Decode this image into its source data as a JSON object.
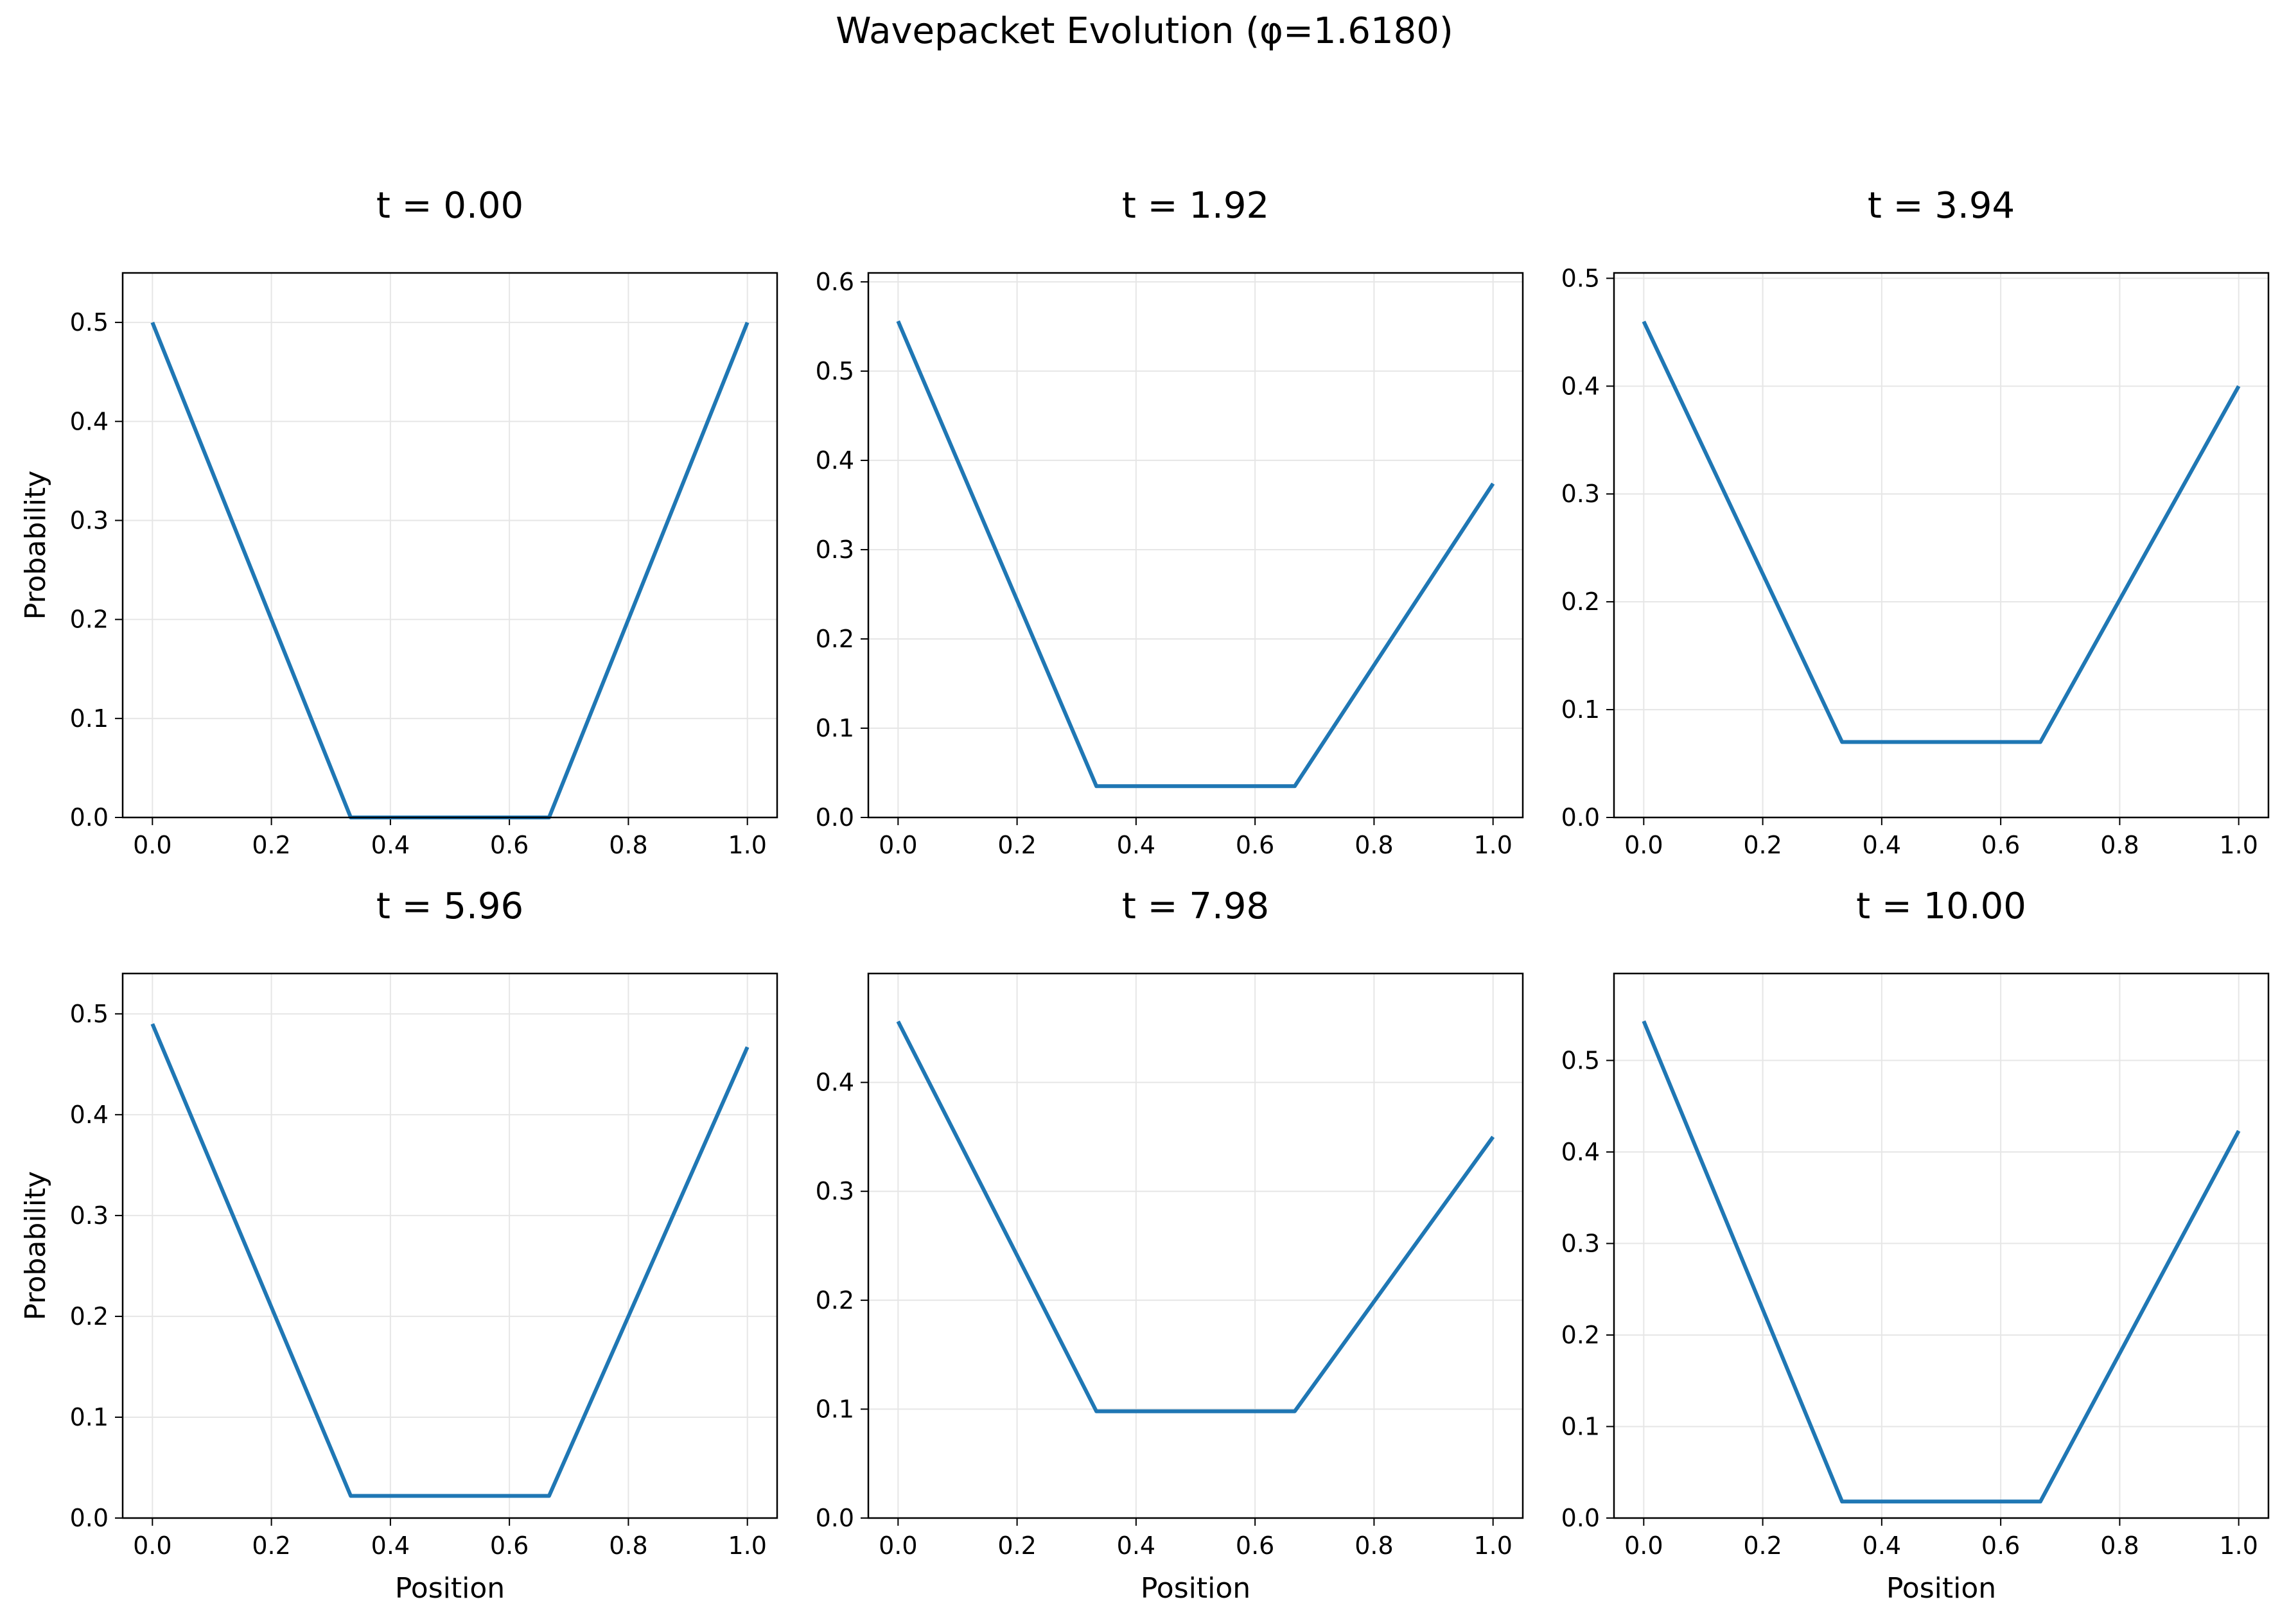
{
  "suptitle": "Wavepacket Evolution (φ=1.6180)",
  "colors": {
    "line": "#1f77b4",
    "grid": "#e6e6e6",
    "axes": "#000000"
  },
  "chart_data": [
    {
      "type": "line",
      "title": "t = 0.00",
      "xlabel": "",
      "ylabel": "Probability",
      "x": [
        0,
        0.3333,
        0.6667,
        1.0
      ],
      "y": [
        0.5,
        0.0,
        0.0,
        0.5
      ],
      "xlim": [
        -0.05,
        1.05
      ],
      "ylim": [
        0,
        0.55
      ],
      "xticks": [
        0.0,
        0.2,
        0.4,
        0.6,
        0.8,
        1.0
      ],
      "yticks": [
        0.0,
        0.1,
        0.2,
        0.3,
        0.4,
        0.5
      ],
      "grid": true
    },
    {
      "type": "line",
      "title": "t = 1.92",
      "xlabel": "",
      "ylabel": "",
      "x": [
        0,
        0.3333,
        0.6667,
        1.0
      ],
      "y": [
        0.556,
        0.035,
        0.035,
        0.374
      ],
      "xlim": [
        -0.05,
        1.05
      ],
      "ylim": [
        0,
        0.61
      ],
      "xticks": [
        0.0,
        0.2,
        0.4,
        0.6,
        0.8,
        1.0
      ],
      "yticks": [
        0.0,
        0.1,
        0.2,
        0.3,
        0.4,
        0.5,
        0.6
      ],
      "grid": true
    },
    {
      "type": "line",
      "title": "t = 3.94",
      "xlabel": "",
      "ylabel": "",
      "x": [
        0,
        0.3333,
        0.6667,
        1.0
      ],
      "y": [
        0.46,
        0.07,
        0.07,
        0.4
      ],
      "xlim": [
        -0.05,
        1.05
      ],
      "ylim": [
        0,
        0.505
      ],
      "xticks": [
        0.0,
        0.2,
        0.4,
        0.6,
        0.8,
        1.0
      ],
      "yticks": [
        0.0,
        0.1,
        0.2,
        0.3,
        0.4,
        0.5
      ],
      "grid": true
    },
    {
      "type": "line",
      "title": "t = 5.96",
      "xlabel": "Position",
      "ylabel": "Probability",
      "x": [
        0,
        0.3333,
        0.6667,
        1.0
      ],
      "y": [
        0.49,
        0.022,
        0.022,
        0.467
      ],
      "xlim": [
        -0.05,
        1.05
      ],
      "ylim": [
        0,
        0.54
      ],
      "xticks": [
        0.0,
        0.2,
        0.4,
        0.6,
        0.8,
        1.0
      ],
      "yticks": [
        0.0,
        0.1,
        0.2,
        0.3,
        0.4,
        0.5
      ],
      "grid": true
    },
    {
      "type": "line",
      "title": "t = 7.98",
      "xlabel": "Position",
      "ylabel": "",
      "x": [
        0,
        0.3333,
        0.6667,
        1.0
      ],
      "y": [
        0.456,
        0.098,
        0.098,
        0.35
      ],
      "xlim": [
        -0.05,
        1.05
      ],
      "ylim": [
        0,
        0.5
      ],
      "xticks": [
        0.0,
        0.2,
        0.4,
        0.6,
        0.8,
        1.0
      ],
      "yticks": [
        0.0,
        0.1,
        0.2,
        0.3,
        0.4
      ],
      "grid": true
    },
    {
      "type": "line",
      "title": "t = 10.00",
      "xlabel": "Position",
      "ylabel": "",
      "x": [
        0,
        0.3333,
        0.6667,
        1.0
      ],
      "y": [
        0.543,
        0.018,
        0.018,
        0.423
      ],
      "xlim": [
        -0.05,
        1.05
      ],
      "ylim": [
        0,
        0.595
      ],
      "xticks": [
        0.0,
        0.2,
        0.4,
        0.6,
        0.8,
        1.0
      ],
      "yticks": [
        0.0,
        0.1,
        0.2,
        0.3,
        0.4,
        0.5
      ],
      "grid": true
    }
  ]
}
